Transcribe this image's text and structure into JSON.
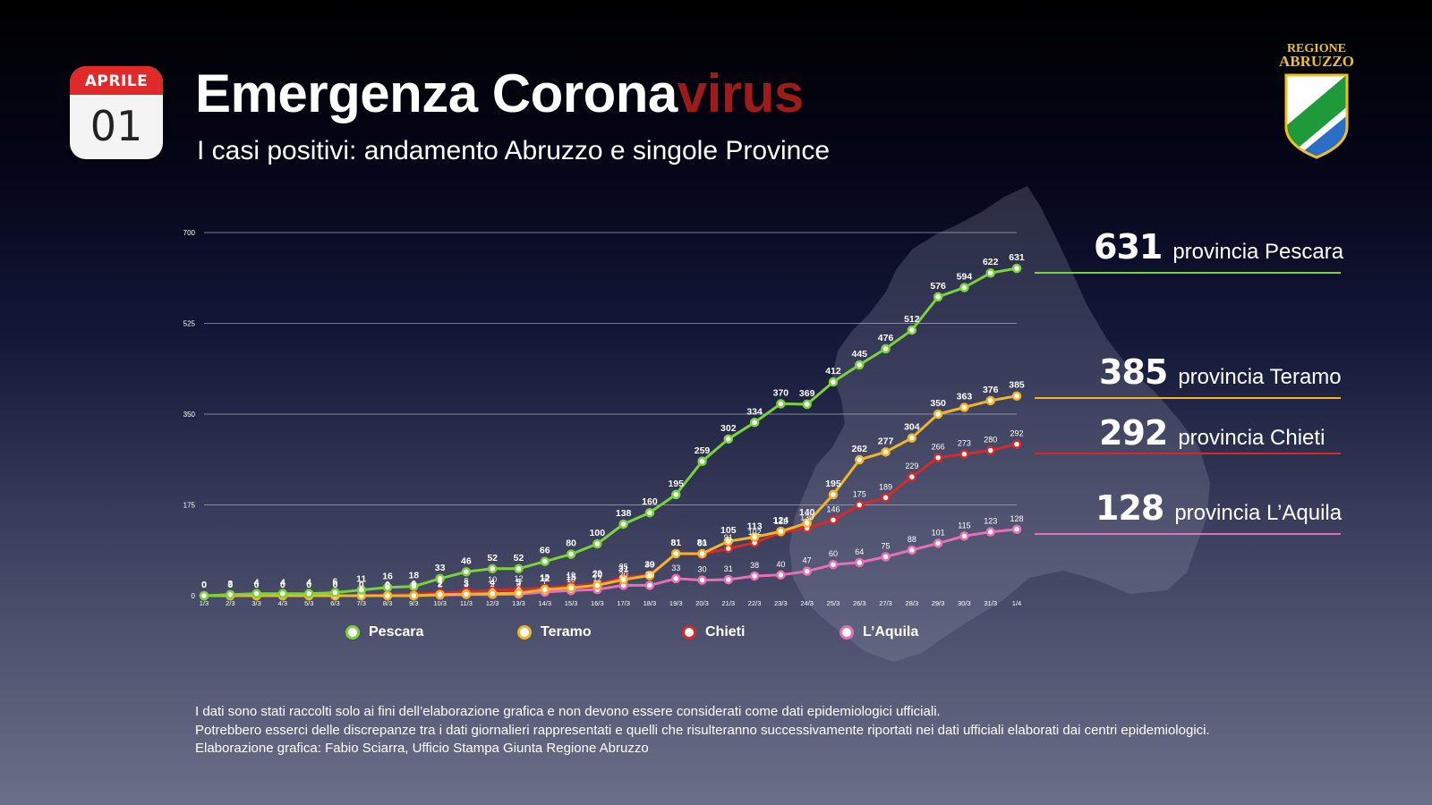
{
  "header": {
    "calendar_month": "APRILE",
    "calendar_day": "01",
    "title_main": "Emergenza Corona",
    "title_accent": "virus",
    "subtitle": "I casi positivi: andamento Abruzzo e singole Province",
    "logo_text_line1": "REGIONE",
    "logo_text_line2": "ABRUZZO"
  },
  "colors": {
    "pescara": "#7bd23c",
    "teramo": "#f0b52b",
    "chieti": "#d8282a",
    "laquila": "#e570b8",
    "title_accent": "#9c1c1c"
  },
  "summary": [
    {
      "value": "631",
      "label": "provincia Pescara",
      "series": "pescara"
    },
    {
      "value": "385",
      "label": "provincia Teramo",
      "series": "teramo"
    },
    {
      "value": "292",
      "label": "provincia Chieti",
      "series": "chieti"
    },
    {
      "value": "128",
      "label": "provincia L’Aquila",
      "series": "laquila"
    }
  ],
  "chart_data": {
    "type": "line",
    "title": "",
    "xlabel": "",
    "ylabel": "",
    "ylim": [
      0,
      700
    ],
    "yticks": [
      "0",
      "175",
      "350",
      "525",
      "700"
    ],
    "grid": true,
    "legend_position": "bottom",
    "x": [
      "1/3",
      "2/3",
      "3/3",
      "4/3",
      "5/3",
      "6/3",
      "7/3",
      "8/3",
      "9/3",
      "10/3",
      "11/3",
      "12/3",
      "13/3",
      "14/3",
      "15/3",
      "16/3",
      "17/3",
      "18/3",
      "19/3",
      "20/3",
      "21/3",
      "22/3",
      "23/3",
      "24/3",
      "25/3",
      "26/3",
      "27/3",
      "28/3",
      "29/3",
      "30/3",
      "31/3",
      "1/4"
    ],
    "series": [
      {
        "key": "pescara",
        "name": "Pescara",
        "values": [
          0,
          2,
          4,
          4,
          4,
          6,
          11,
          16,
          18,
          33,
          46,
          52,
          52,
          66,
          80,
          100,
          138,
          160,
          195,
          259,
          302,
          334,
          370,
          369,
          412,
          445,
          476,
          512,
          576,
          594,
          622,
          631
        ]
      },
      {
        "key": "teramo",
        "name": "Teramo",
        "values": [
          0,
          0,
          0,
          0,
          0,
          0,
          0,
          0,
          0,
          2,
          3,
          4,
          5,
          12,
          15,
          20,
          31,
          39,
          81,
          81,
          105,
          113,
          124,
          140,
          195,
          262,
          277,
          304,
          350,
          363,
          376,
          385
        ]
      },
      {
        "key": "chieti",
        "name": "Chieti",
        "values": [
          0,
          0,
          0,
          0,
          0,
          0,
          0,
          1,
          3,
          5,
          8,
          10,
          12,
          15,
          19,
          22,
          35,
          40,
          81,
          80,
          91,
          102,
          122,
          130,
          146,
          175,
          189,
          229,
          266,
          273,
          280,
          292
        ]
      },
      {
        "key": "laquila",
        "name": "L’Aquila",
        "values": [
          0,
          0,
          0,
          0,
          0,
          0,
          0,
          0,
          0,
          1,
          2,
          2,
          3,
          7,
          10,
          12,
          20,
          20,
          33,
          30,
          31,
          38,
          40,
          47,
          60,
          64,
          75,
          88,
          101,
          115,
          123,
          128
        ]
      }
    ]
  },
  "footer": {
    "line1": "I dati sono stati raccolti solo ai fini dell’elaborazione grafica e non devono essere considerati come dati epidemiologici ufficiali.",
    "line2": "Potrebbero esserci delle discrepanze tra i dati giornalieri rappresentati e quelli che risulteranno successivamente riportati nei dati ufficiali elaborati dai centri epidemiologici.",
    "line3": "Elaborazione grafica: Fabio Sciarra, Ufficio Stampa Giunta Regione Abruzzo"
  }
}
